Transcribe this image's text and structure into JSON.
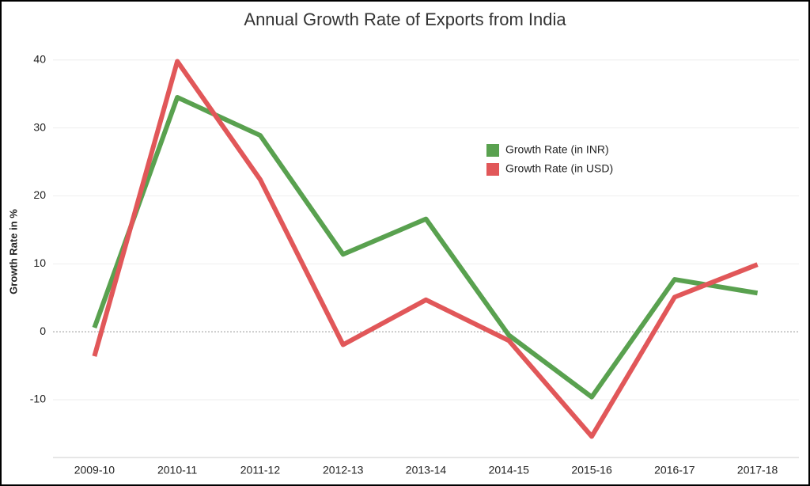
{
  "chart_data": {
    "type": "line",
    "title": "Annual Growth Rate of Exports from India",
    "y_label": "Growth Rate in %",
    "categories": [
      "2009-10",
      "2010-11",
      "2011-12",
      "2012-13",
      "2013-14",
      "2014-15",
      "2015-16",
      "2016-17",
      "2017-18"
    ],
    "series": [
      {
        "name": "Growth Rate (in INR)",
        "color": "#59a14f",
        "values": [
          0.6,
          34.5,
          28.9,
          11.4,
          16.6,
          -0.5,
          -9.6,
          7.7,
          5.7
        ]
      },
      {
        "name": "Growth Rate (in USD)",
        "color": "#e15759",
        "values": [
          -3.6,
          39.8,
          22.4,
          -1.9,
          4.7,
          -1.3,
          -15.4,
          5.1,
          9.9
        ]
      }
    ],
    "ylim": [
      -18.5,
      43
    ],
    "yticks": [
      -10,
      0,
      10,
      20,
      30,
      40
    ],
    "grid": true,
    "legend": "upper right"
  }
}
